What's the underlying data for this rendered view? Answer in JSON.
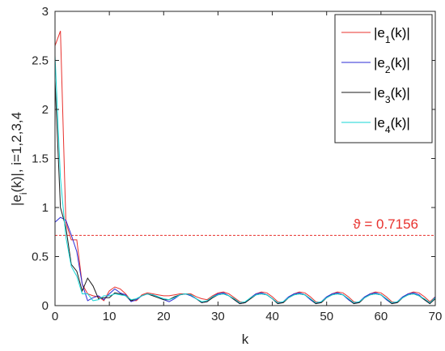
{
  "chart_data": {
    "type": "line",
    "xlabel": "k",
    "ylabel": "|e_i(k)|, i=1,2,3,4",
    "xlim": [
      0,
      70
    ],
    "ylim": [
      0,
      3
    ],
    "xticks": [
      "0",
      "10",
      "20",
      "30",
      "40",
      "50",
      "60",
      "70"
    ],
    "yticks": [
      "0",
      "0.5",
      "1",
      "1.5",
      "2",
      "2.5",
      "3"
    ],
    "grid": false,
    "legend_position": "top-right",
    "series": [
      {
        "name": "|e1(k)|",
        "color": "#e8312d",
        "x": [
          0,
          1,
          2,
          3,
          4,
          5,
          6,
          7,
          8,
          9,
          10,
          11,
          12,
          13,
          14,
          15,
          16,
          17,
          18,
          19,
          20,
          21,
          22,
          23,
          24,
          25,
          26,
          27,
          28,
          29,
          30,
          31,
          32,
          33,
          34,
          35,
          36,
          37,
          38,
          39,
          40,
          41,
          42,
          43,
          44,
          45,
          46,
          47,
          48,
          49,
          50,
          51,
          52,
          53,
          54,
          55,
          56,
          57,
          58,
          59,
          60,
          61,
          62,
          63,
          64,
          65,
          66,
          67,
          68,
          69,
          70
        ],
        "y": [
          2.65,
          2.8,
          0.85,
          0.67,
          0.67,
          0.22,
          0.12,
          0.1,
          0.09,
          0.05,
          0.15,
          0.19,
          0.17,
          0.12,
          0.05,
          0.05,
          0.11,
          0.13,
          0.12,
          0.11,
          0.1,
          0.1,
          0.11,
          0.12,
          0.12,
          0.12,
          0.09,
          0.07,
          0.06,
          0.1,
          0.13,
          0.14,
          0.12,
          0.08,
          0.04,
          0.03,
          0.08,
          0.12,
          0.14,
          0.13,
          0.09,
          0.04,
          0.03,
          0.08,
          0.12,
          0.14,
          0.13,
          0.09,
          0.04,
          0.03,
          0.08,
          0.12,
          0.14,
          0.13,
          0.09,
          0.04,
          0.03,
          0.08,
          0.12,
          0.14,
          0.13,
          0.09,
          0.04,
          0.03,
          0.08,
          0.12,
          0.14,
          0.13,
          0.09,
          0.04,
          0.09
        ]
      },
      {
        "name": "|e2(k)|",
        "color": "#2b2bd6",
        "x": [
          0,
          1,
          2,
          3,
          4,
          5,
          6,
          7,
          8,
          9,
          10,
          11,
          12,
          13,
          14,
          15,
          16,
          17,
          18,
          19,
          20,
          21,
          22,
          23,
          24,
          25,
          26,
          27,
          28,
          29,
          30,
          31,
          32,
          33,
          34,
          35,
          36,
          37,
          38,
          39,
          40,
          41,
          42,
          43,
          44,
          45,
          46,
          47,
          48,
          49,
          50,
          51,
          52,
          53,
          54,
          55,
          56,
          57,
          58,
          59,
          60,
          61,
          62,
          63,
          64,
          65,
          66,
          67,
          68,
          69,
          70
        ],
        "y": [
          0.85,
          0.9,
          0.87,
          0.72,
          0.55,
          0.22,
          0.05,
          0.08,
          0.1,
          0.06,
          0.12,
          0.17,
          0.13,
          0.11,
          0.04,
          0.06,
          0.1,
          0.12,
          0.11,
          0.09,
          0.06,
          0.04,
          0.07,
          0.11,
          0.12,
          0.1,
          0.07,
          0.03,
          0.04,
          0.09,
          0.12,
          0.13,
          0.1,
          0.06,
          0.02,
          0.03,
          0.08,
          0.12,
          0.13,
          0.11,
          0.07,
          0.02,
          0.04,
          0.09,
          0.12,
          0.13,
          0.11,
          0.06,
          0.02,
          0.04,
          0.09,
          0.12,
          0.13,
          0.11,
          0.06,
          0.02,
          0.04,
          0.09,
          0.12,
          0.13,
          0.11,
          0.06,
          0.02,
          0.04,
          0.09,
          0.12,
          0.13,
          0.11,
          0.06,
          0.02,
          0.09
        ]
      },
      {
        "name": "|e3(k)|",
        "color": "#1a1a1a",
        "x": [
          0,
          1,
          2,
          3,
          4,
          5,
          6,
          7,
          8,
          9,
          10,
          11,
          12,
          13,
          14,
          15,
          16,
          17,
          18,
          19,
          20,
          21,
          22,
          23,
          24,
          25,
          26,
          27,
          28,
          29,
          30,
          31,
          32,
          33,
          34,
          35,
          36,
          37,
          38,
          39,
          40,
          41,
          42,
          43,
          44,
          45,
          46,
          47,
          48,
          49,
          50,
          51,
          52,
          53,
          54,
          55,
          56,
          57,
          58,
          59,
          60,
          61,
          62,
          63,
          64,
          65,
          66,
          67,
          68,
          69,
          70
        ],
        "y": [
          2.3,
          1.0,
          0.8,
          0.42,
          0.35,
          0.15,
          0.28,
          0.2,
          0.07,
          0.08,
          0.08,
          0.13,
          0.12,
          0.1,
          0.05,
          0.07,
          0.1,
          0.12,
          0.1,
          0.08,
          0.06,
          0.06,
          0.09,
          0.11,
          0.12,
          0.11,
          0.07,
          0.03,
          0.04,
          0.08,
          0.11,
          0.12,
          0.1,
          0.06,
          0.02,
          0.03,
          0.07,
          0.11,
          0.12,
          0.11,
          0.07,
          0.02,
          0.03,
          0.08,
          0.11,
          0.12,
          0.11,
          0.07,
          0.02,
          0.03,
          0.08,
          0.11,
          0.12,
          0.11,
          0.07,
          0.02,
          0.03,
          0.08,
          0.11,
          0.12,
          0.11,
          0.07,
          0.02,
          0.03,
          0.08,
          0.11,
          0.12,
          0.1,
          0.06,
          0.02,
          0.07
        ]
      },
      {
        "name": "|e4(k)|",
        "color": "#16d6d6",
        "x": [
          0,
          1,
          2,
          3,
          4,
          5,
          6,
          7,
          8,
          9,
          10,
          11,
          12,
          13,
          14,
          15,
          16,
          17,
          18,
          19,
          20,
          21,
          22,
          23,
          24,
          25,
          26,
          27,
          28,
          29,
          30,
          31,
          32,
          33,
          34,
          35,
          36,
          37,
          38,
          39,
          40,
          41,
          42,
          43,
          44,
          45,
          46,
          47,
          48,
          49,
          50,
          51,
          52,
          53,
          54,
          55,
          56,
          57,
          58,
          59,
          60,
          61,
          62,
          63,
          64,
          65,
          66,
          67,
          68,
          69,
          70
        ],
        "y": [
          2.55,
          1.3,
          0.7,
          0.4,
          0.3,
          0.12,
          0.12,
          0.05,
          0.06,
          0.1,
          0.1,
          0.12,
          0.11,
          0.1,
          0.06,
          0.07,
          0.1,
          0.12,
          0.11,
          0.09,
          0.07,
          0.06,
          0.08,
          0.11,
          0.12,
          0.11,
          0.07,
          0.04,
          0.05,
          0.09,
          0.11,
          0.12,
          0.1,
          0.07,
          0.03,
          0.04,
          0.08,
          0.11,
          0.12,
          0.11,
          0.07,
          0.03,
          0.04,
          0.08,
          0.11,
          0.12,
          0.11,
          0.07,
          0.03,
          0.04,
          0.08,
          0.11,
          0.12,
          0.11,
          0.07,
          0.03,
          0.04,
          0.08,
          0.11,
          0.12,
          0.11,
          0.07,
          0.03,
          0.04,
          0.08,
          0.11,
          0.12,
          0.1,
          0.07,
          0.03,
          0.08
        ]
      }
    ],
    "threshold": {
      "value": 0.7156,
      "label": "ϑ = 0.7156",
      "color": "#e8312d"
    }
  }
}
